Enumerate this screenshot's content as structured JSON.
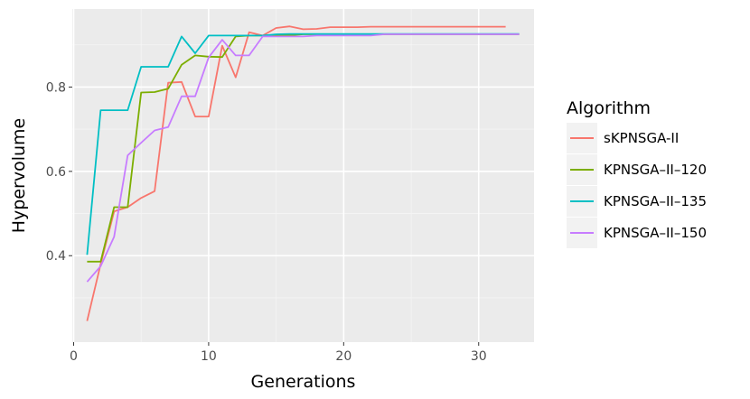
{
  "chart_data": {
    "type": "line",
    "xlabel": "Generations",
    "ylabel": "Hypervolume",
    "xlim": [
      -0.1,
      34.1
    ],
    "ylim": [
      0.195,
      0.985
    ],
    "x_ticks": [
      0,
      10,
      20,
      30
    ],
    "y_ticks": [
      0.4,
      0.6,
      0.8
    ],
    "x_tick_labels": [
      "0",
      "10",
      "20",
      "30"
    ],
    "y_tick_labels": [
      "0.4",
      "0.6",
      "0.8"
    ],
    "grid": true,
    "legend": {
      "title": "Algorithm",
      "position": "right"
    },
    "series": [
      {
        "name": "sKPNSGA-II",
        "color": "#F8766D",
        "x": [
          1,
          2,
          3,
          4,
          5,
          6,
          7,
          8,
          9,
          10,
          11,
          12,
          13,
          14,
          15,
          16,
          17,
          18,
          19,
          20,
          21,
          22,
          23,
          24,
          25,
          26,
          27,
          28,
          29,
          30,
          31,
          32
        ],
        "y": [
          0.245,
          0.38,
          0.505,
          0.515,
          0.537,
          0.553,
          0.81,
          0.812,
          0.73,
          0.73,
          0.898,
          0.823,
          0.93,
          0.922,
          0.94,
          0.944,
          0.937,
          0.938,
          0.942,
          0.942,
          0.942,
          0.943,
          0.943,
          0.943,
          0.943,
          0.943,
          0.943,
          0.943,
          0.943,
          0.943,
          0.943,
          0.943
        ]
      },
      {
        "name": "KPNSGA–II–120",
        "color": "#7CAE00",
        "x": [
          1,
          2,
          3,
          4,
          5,
          6,
          7,
          8,
          9,
          10,
          11,
          12,
          13,
          14,
          15,
          16,
          17,
          18,
          19,
          20,
          21,
          22,
          23,
          24,
          25,
          26,
          27,
          28,
          29,
          30,
          31,
          32,
          33
        ],
        "y": [
          0.386,
          0.386,
          0.515,
          0.515,
          0.787,
          0.788,
          0.796,
          0.853,
          0.875,
          0.872,
          0.871,
          0.92,
          0.922,
          0.922,
          0.922,
          0.923,
          0.925,
          0.925,
          0.925,
          0.925,
          0.925,
          0.925,
          0.925,
          0.925,
          0.925,
          0.925,
          0.925,
          0.925,
          0.925,
          0.925,
          0.925,
          0.925,
          0.925
        ]
      },
      {
        "name": "KPNSGA–II–135",
        "color": "#00BFC4",
        "x": [
          1,
          2,
          3,
          4,
          5,
          6,
          7,
          8,
          9,
          10,
          11,
          12,
          13,
          14,
          15,
          16,
          17,
          18,
          19,
          20,
          21,
          22,
          23,
          24,
          25,
          26,
          27,
          28,
          29,
          30,
          31,
          32,
          33
        ],
        "y": [
          0.402,
          0.745,
          0.745,
          0.745,
          0.848,
          0.848,
          0.848,
          0.92,
          0.88,
          0.922,
          0.922,
          0.922,
          0.922,
          0.922,
          0.925,
          0.926,
          0.926,
          0.926,
          0.926,
          0.926,
          0.926,
          0.926,
          0.926,
          0.926,
          0.926,
          0.926,
          0.926,
          0.926,
          0.926,
          0.926,
          0.926,
          0.926,
          0.926
        ]
      },
      {
        "name": "KPNSGA–II–150",
        "color": "#C77CFF",
        "x": [
          1,
          2,
          3,
          4,
          5,
          6,
          7,
          8,
          9,
          10,
          11,
          12,
          13,
          14,
          15,
          16,
          17,
          18,
          19,
          20,
          21,
          22,
          23,
          24,
          25,
          26,
          27,
          28,
          29,
          30,
          31,
          32,
          33
        ],
        "y": [
          0.338,
          0.375,
          0.445,
          0.638,
          0.668,
          0.697,
          0.705,
          0.778,
          0.778,
          0.87,
          0.912,
          0.875,
          0.875,
          0.92,
          0.92,
          0.92,
          0.92,
          0.922,
          0.922,
          0.922,
          0.922,
          0.922,
          0.925,
          0.925,
          0.925,
          0.925,
          0.925,
          0.925,
          0.925,
          0.925,
          0.925,
          0.925,
          0.925
        ]
      }
    ]
  }
}
